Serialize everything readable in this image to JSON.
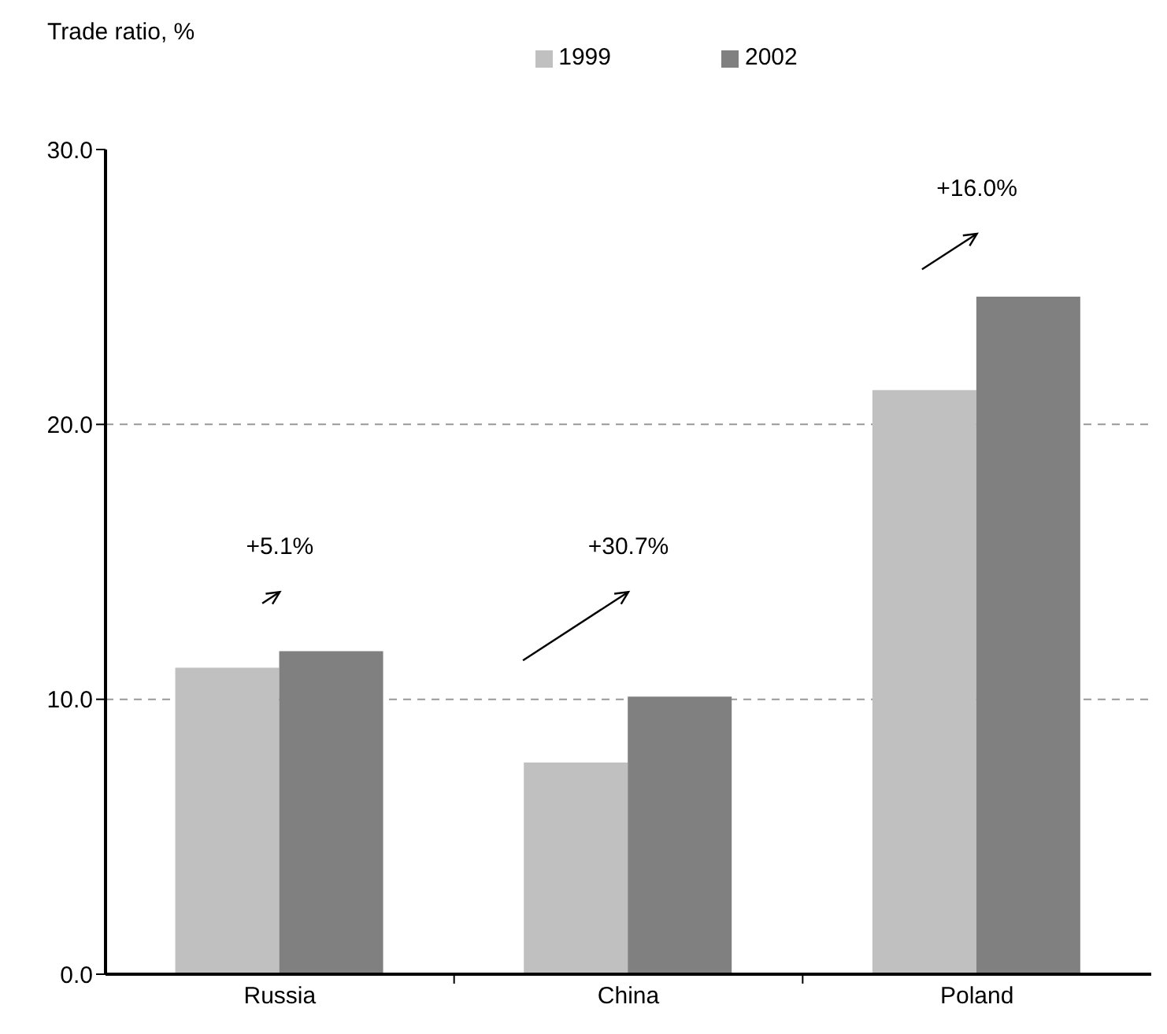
{
  "chart_data": {
    "type": "bar",
    "ylabel": "Trade ratio, %",
    "categories": [
      "Russia",
      "China",
      "Poland"
    ],
    "series": [
      {
        "name": "1999",
        "color": "#c0c0c0",
        "values": [
          11.15,
          7.7,
          21.25
        ]
      },
      {
        "name": "2002",
        "color": "#808080",
        "values": [
          11.75,
          10.1,
          24.65
        ]
      }
    ],
    "ylim": [
      0,
      30
    ],
    "yticks": [
      {
        "value": 0,
        "label": "0.0"
      },
      {
        "value": 10,
        "label": "10.0"
      },
      {
        "value": 20,
        "label": "20.0"
      },
      {
        "value": 30,
        "label": "30.0"
      }
    ],
    "grid": "y",
    "legend": "top",
    "annotations": [
      "+5.1%",
      "+30.7%",
      "+16.0%"
    ]
  }
}
